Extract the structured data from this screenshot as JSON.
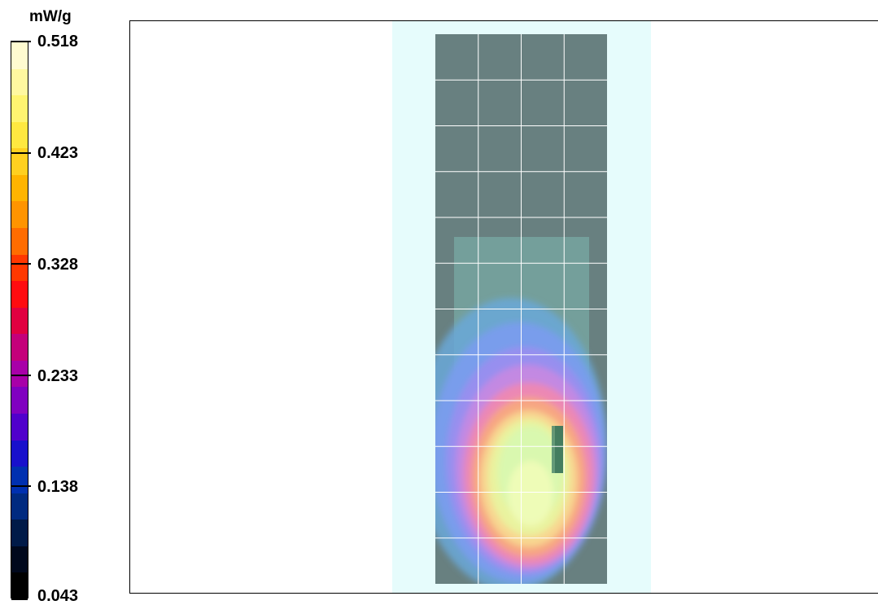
{
  "chart_data": {
    "type": "heatmap",
    "title": "",
    "unit": "mW/g",
    "colorbar": {
      "min": 0.043,
      "max": 0.518,
      "tick_labels": [
        "0.518",
        "0.423",
        "0.328",
        "0.233",
        "0.138",
        "0.043"
      ],
      "colors_top_to_bottom": [
        "#fffbd0",
        "#fff8a0",
        "#fff470",
        "#ffe840",
        "#ffd020",
        "#ffb400",
        "#ff9400",
        "#ff6c00",
        "#ff3800",
        "#ff0c10",
        "#e00040",
        "#c4007a",
        "#a800a8",
        "#8000c0",
        "#5000cc",
        "#1810cc",
        "#0030b0",
        "#002a80",
        "#001a48",
        "#00081c",
        "#000000"
      ]
    },
    "measurement_grid": {
      "rows": 12,
      "cols": 4
    },
    "field_region_rows": {
      "top_fraction": 0.42,
      "bottom_fraction": 1.0
    },
    "colors": {
      "phantom": "#e6fcfc",
      "scan_area": "#688080",
      "inner_region": "#7eb8b0",
      "grid_line": "#ffffff"
    }
  }
}
